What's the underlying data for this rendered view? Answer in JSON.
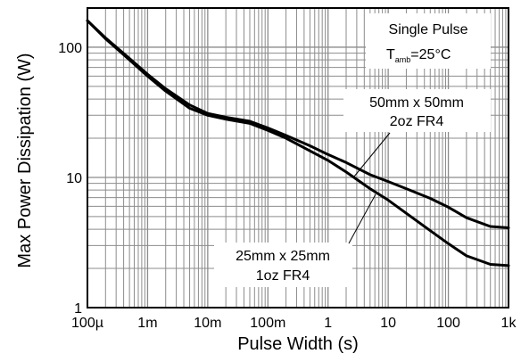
{
  "chart_data": {
    "type": "line",
    "title": "",
    "xlabel": "Pulse Width (s)",
    "ylabel": "Max Power Dissipation (W)",
    "x_scale": "log",
    "y_scale": "log",
    "xlim": [
      0.0001,
      1000
    ],
    "ylim": [
      1,
      200
    ],
    "grid": true,
    "x_ticks": [
      {
        "value": 0.0001,
        "label": "100µ"
      },
      {
        "value": 0.001,
        "label": "1m"
      },
      {
        "value": 0.01,
        "label": "10m"
      },
      {
        "value": 0.1,
        "label": "100m"
      },
      {
        "value": 1,
        "label": "1"
      },
      {
        "value": 10,
        "label": "10"
      },
      {
        "value": 100,
        "label": "100"
      },
      {
        "value": 1000,
        "label": "1k"
      }
    ],
    "y_ticks": [
      {
        "value": 1,
        "label": "1"
      },
      {
        "value": 10,
        "label": "10"
      },
      {
        "value": 100,
        "label": "100"
      }
    ],
    "annotations": {
      "conditions": {
        "line1": "Single Pulse",
        "line2_main": "T",
        "line2_sub": "amb",
        "line2_rest": "=25°C"
      },
      "series_50": {
        "line1": "50mm x 50mm",
        "line2": "2oz FR4"
      },
      "series_25": {
        "line1": "25mm x 25mm",
        "line2": "1oz FR4"
      }
    },
    "series": [
      {
        "name": "50mm x 50mm 2oz FR4",
        "x": [
          0.0001,
          0.0002,
          0.0005,
          0.001,
          0.002,
          0.005,
          0.01,
          0.02,
          0.05,
          0.1,
          0.2,
          0.5,
          1,
          2,
          5,
          10,
          20,
          50,
          100,
          200,
          500,
          1000
        ],
        "y": [
          160,
          118,
          82,
          62,
          48,
          36,
          31,
          29,
          27,
          24,
          21,
          17.5,
          15,
          13,
          10.5,
          9.3,
          8.2,
          6.9,
          5.9,
          4.9,
          4.2,
          4.1
        ]
      },
      {
        "name": "25mm x 25mm 1oz FR4",
        "x": [
          0.0001,
          0.0002,
          0.0005,
          0.001,
          0.002,
          0.005,
          0.01,
          0.02,
          0.05,
          0.1,
          0.2,
          0.5,
          1,
          2,
          5,
          10,
          20,
          50,
          100,
          200,
          500,
          1000
        ],
        "y": [
          160,
          116,
          80,
          60,
          46,
          34,
          30,
          28,
          26,
          23,
          20,
          16,
          13.5,
          11,
          8.2,
          6.7,
          5.3,
          3.9,
          3.1,
          2.5,
          2.15,
          2.1
        ]
      }
    ]
  }
}
